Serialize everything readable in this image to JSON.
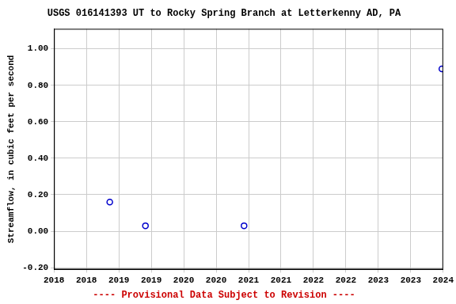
{
  "chart_data": {
    "type": "scatter",
    "title": "USGS 016141393 UT to Rocky Spring Branch at Letterkenny AD, PA",
    "subtitle": "---- Provisional Data Subject to Revision ----",
    "y_label": "Streamflow, in cubic feet per second",
    "x": [
      2018.86,
      2019.41,
      2020.93,
      2023.98
    ],
    "values": [
      0.16,
      0.03,
      0.03,
      0.89
    ],
    "color": "#0000cc",
    "marker": "circle",
    "grid": true,
    "xlim": [
      2018,
      2024
    ],
    "xticks": [
      {
        "value": 2018,
        "label": "2018"
      },
      {
        "value": 2018.5,
        "label": "2018"
      },
      {
        "value": 2019,
        "label": "2019"
      },
      {
        "value": 2019.5,
        "label": "2019"
      },
      {
        "value": 2020,
        "label": "2020"
      },
      {
        "value": 2020.5,
        "label": "2020"
      },
      {
        "value": 2021,
        "label": "2021"
      },
      {
        "value": 2021.5,
        "label": "2021"
      },
      {
        "value": 2022,
        "label": "2022"
      },
      {
        "value": 2022.5,
        "label": "2022"
      },
      {
        "value": 2023,
        "label": "2023"
      },
      {
        "value": 2023.5,
        "label": "2023"
      },
      {
        "value": 2024,
        "label": "2024"
      }
    ],
    "ylim": [
      -0.21,
      1.11
    ],
    "yticks": [
      {
        "value": -0.2,
        "label": "-0.20"
      },
      {
        "value": 0,
        "label": "0.00"
      },
      {
        "value": 0.2,
        "label": "0.20"
      },
      {
        "value": 0.4,
        "label": "0.40"
      },
      {
        "value": 0.6,
        "label": "0.60"
      },
      {
        "value": 0.8,
        "label": "0.80"
      },
      {
        "value": 1.0,
        "label": "1.00"
      }
    ]
  }
}
